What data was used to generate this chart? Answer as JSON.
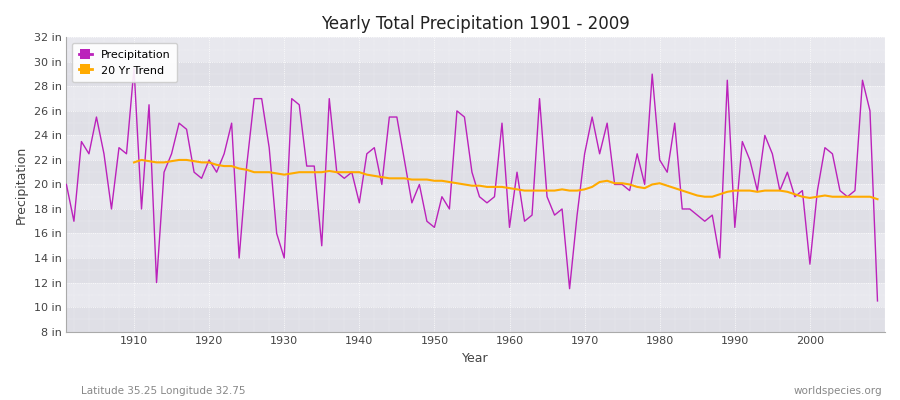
{
  "title": "Yearly Total Precipitation 1901 - 2009",
  "xlabel": "Year",
  "ylabel": "Precipitation",
  "subtitle_left": "Latitude 35.25 Longitude 32.75",
  "subtitle_right": "worldspecies.org",
  "ylim": [
    8,
    32
  ],
  "yticks": [
    8,
    10,
    12,
    14,
    16,
    18,
    20,
    22,
    24,
    26,
    28,
    30,
    32
  ],
  "ytick_labels": [
    "8 in",
    "10 in",
    "12 in",
    "14 in",
    "16 in",
    "18 in",
    "20 in",
    "22 in",
    "24 in",
    "26 in",
    "28 in",
    "30 in",
    "32 in"
  ],
  "xticks": [
    1910,
    1920,
    1930,
    1940,
    1950,
    1960,
    1970,
    1980,
    1990,
    2000
  ],
  "xlim": [
    1901,
    2010
  ],
  "fig_bg_color": "#ffffff",
  "plot_bg_color": "#e8e8ee",
  "precip_color": "#bb22bb",
  "trend_color": "#ffaa00",
  "years": [
    1901,
    1902,
    1903,
    1904,
    1905,
    1906,
    1907,
    1908,
    1909,
    1910,
    1911,
    1912,
    1913,
    1914,
    1915,
    1916,
    1917,
    1918,
    1919,
    1920,
    1921,
    1922,
    1923,
    1924,
    1925,
    1926,
    1927,
    1928,
    1929,
    1930,
    1931,
    1932,
    1933,
    1934,
    1935,
    1936,
    1937,
    1938,
    1939,
    1940,
    1941,
    1942,
    1943,
    1944,
    1945,
    1946,
    1947,
    1948,
    1949,
    1950,
    1951,
    1952,
    1953,
    1954,
    1955,
    1956,
    1957,
    1958,
    1959,
    1960,
    1961,
    1962,
    1963,
    1964,
    1965,
    1966,
    1967,
    1968,
    1969,
    1970,
    1971,
    1972,
    1973,
    1974,
    1975,
    1976,
    1977,
    1978,
    1979,
    1980,
    1981,
    1982,
    1983,
    1984,
    1985,
    1986,
    1987,
    1988,
    1989,
    1990,
    1991,
    1992,
    1993,
    1994,
    1995,
    1996,
    1997,
    1998,
    1999,
    2000,
    2001,
    2002,
    2003,
    2004,
    2005,
    2006,
    2007,
    2008,
    2009
  ],
  "precipitation": [
    20.0,
    17.0,
    23.5,
    22.5,
    25.5,
    22.5,
    18.0,
    23.0,
    22.5,
    29.5,
    18.0,
    26.5,
    12.0,
    21.0,
    22.5,
    25.0,
    24.5,
    21.0,
    20.5,
    22.0,
    21.0,
    22.5,
    25.0,
    14.0,
    21.5,
    27.0,
    27.0,
    23.0,
    16.0,
    14.0,
    27.0,
    26.5,
    21.5,
    21.5,
    15.0,
    27.0,
    21.0,
    20.5,
    21.0,
    18.5,
    22.5,
    23.0,
    20.0,
    25.5,
    25.5,
    22.0,
    18.5,
    20.0,
    17.0,
    16.5,
    19.0,
    18.0,
    26.0,
    25.5,
    21.0,
    19.0,
    18.5,
    19.0,
    25.0,
    16.5,
    21.0,
    17.0,
    17.5,
    27.0,
    19.0,
    17.5,
    18.0,
    11.5,
    17.5,
    22.5,
    25.5,
    22.5,
    25.0,
    20.0,
    20.0,
    19.5,
    22.5,
    20.0,
    29.0,
    22.0,
    21.0,
    25.0,
    18.0,
    18.0,
    17.5,
    17.0,
    17.5,
    14.0,
    28.5,
    16.5,
    23.5,
    22.0,
    19.5,
    24.0,
    22.5,
    19.5,
    21.0,
    19.0,
    19.5,
    13.5,
    19.5,
    23.0,
    22.5,
    19.5,
    19.0,
    19.5,
    28.5,
    26.0,
    10.5
  ],
  "trend": [
    null,
    null,
    null,
    null,
    null,
    null,
    null,
    null,
    null,
    21.8,
    22.0,
    21.9,
    21.8,
    21.8,
    21.9,
    22.0,
    22.0,
    21.9,
    21.8,
    21.8,
    21.6,
    21.5,
    21.5,
    21.3,
    21.2,
    21.0,
    21.0,
    21.0,
    20.9,
    20.8,
    20.9,
    21.0,
    21.0,
    21.0,
    21.0,
    21.1,
    21.0,
    21.0,
    21.0,
    21.0,
    20.8,
    20.7,
    20.6,
    20.5,
    20.5,
    20.5,
    20.4,
    20.4,
    20.4,
    20.3,
    20.3,
    20.2,
    20.1,
    20.0,
    19.9,
    19.9,
    19.8,
    19.8,
    19.8,
    19.7,
    19.6,
    19.5,
    19.5,
    19.5,
    19.5,
    19.5,
    19.6,
    19.5,
    19.5,
    19.6,
    19.8,
    20.2,
    20.3,
    20.1,
    20.1,
    20.0,
    19.8,
    19.7,
    20.0,
    20.1,
    19.9,
    19.7,
    19.5,
    19.3,
    19.1,
    19.0,
    19.0,
    19.2,
    19.4,
    19.5,
    19.5,
    19.5,
    19.4,
    19.5,
    19.5,
    19.5,
    19.4,
    19.2,
    19.0,
    18.9,
    19.0,
    19.1,
    19.0,
    19.0,
    19.0,
    19.0,
    19.0,
    19.0,
    18.8
  ]
}
